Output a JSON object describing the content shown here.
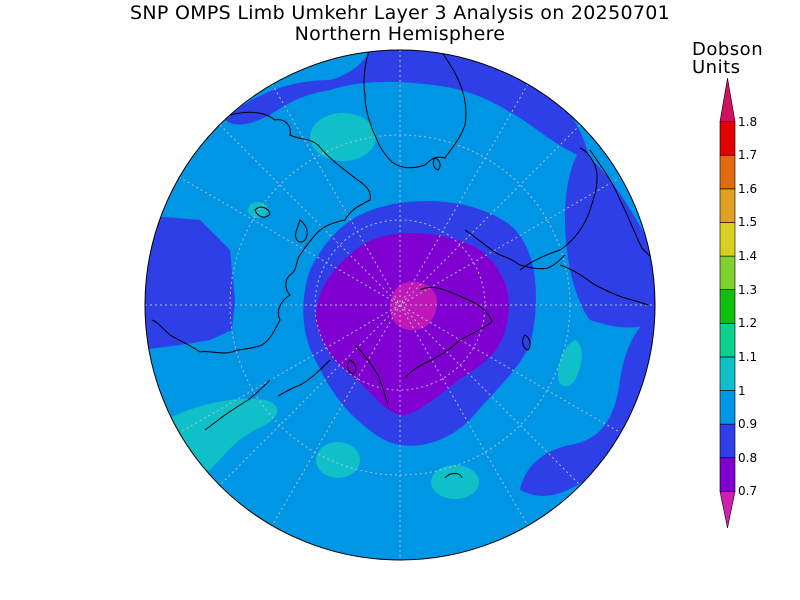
{
  "title": "SNP OMPS Limb Umkehr Layer 3 Analysis on 20250701",
  "subtitle": "Northern Hemisphere",
  "colorbar": {
    "units_line1": "Dobson",
    "units_line2": "Units",
    "ticks": [
      "0.7",
      "0.8",
      "0.9",
      "1",
      "1.1",
      "1.2",
      "1.3",
      "1.4",
      "1.5",
      "1.6",
      "1.7",
      "1.8"
    ],
    "colors": [
      "#d020b0",
      "#7f00d0",
      "#2f3fe8",
      "#0096e6",
      "#10c0c8",
      "#10d090",
      "#10c010",
      "#80d030",
      "#d8d020",
      "#e0a020",
      "#e06a10",
      "#e00000",
      "#d01060"
    ]
  },
  "map": {
    "projection": "north polar stereographic",
    "hemisphere": "Northern",
    "background_color": "#0096e6"
  }
}
